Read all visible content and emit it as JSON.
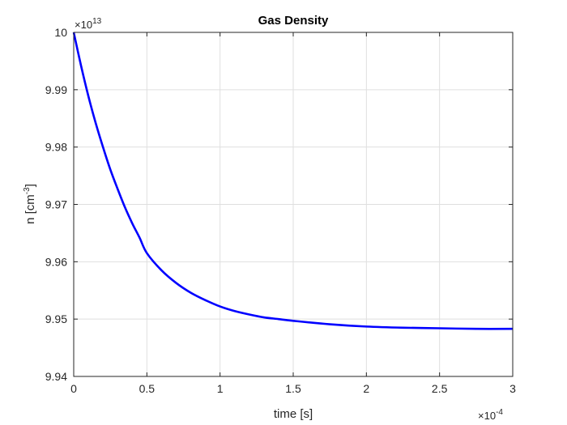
{
  "chart_data": {
    "type": "line",
    "title": "Gas Density",
    "xlabel": "time [s]",
    "ylabel_base": "n [cm",
    "ylabel_sup": "-3",
    "ylabel_close": "]",
    "x_exponent_base": "×10",
    "x_exponent_power": "-4",
    "y_exponent_base": "×10",
    "y_exponent_power": "13",
    "xlim": [
      0,
      3
    ],
    "ylim": [
      9.94,
      10
    ],
    "xticks": [
      0,
      0.5,
      1,
      1.5,
      2,
      2.5,
      3
    ],
    "xtick_labels": [
      "0",
      "0.5",
      "1",
      "1.5",
      "2",
      "2.5",
      "3"
    ],
    "yticks": [
      9.94,
      9.95,
      9.96,
      9.97,
      9.98,
      9.99,
      10
    ],
    "ytick_labels": [
      "9.94",
      "9.95",
      "9.96",
      "9.97",
      "9.98",
      "9.99",
      "10"
    ],
    "grid": true,
    "series": [
      {
        "color": "#0000ff",
        "x": [
          0,
          0.05,
          0.1,
          0.15,
          0.2,
          0.25,
          0.3,
          0.35,
          0.4,
          0.45,
          0.5,
          0.6,
          0.7,
          0.8,
          0.9,
          1.0,
          1.1,
          1.2,
          1.3,
          1.4,
          1.5,
          1.75,
          2.0,
          2.25,
          2.5,
          2.75,
          3.0
        ],
        "y": [
          10.0,
          9.9942,
          9.9889,
          9.9842,
          9.98,
          9.9761,
          9.9727,
          9.9695,
          9.9667,
          9.9642,
          9.9615,
          9.9585,
          9.9563,
          9.9546,
          9.9533,
          9.9522,
          9.9514,
          9.9508,
          9.9503,
          9.95,
          9.9497,
          9.9491,
          9.9487,
          9.9485,
          9.9484,
          9.9483,
          9.9483
        ]
      }
    ]
  }
}
